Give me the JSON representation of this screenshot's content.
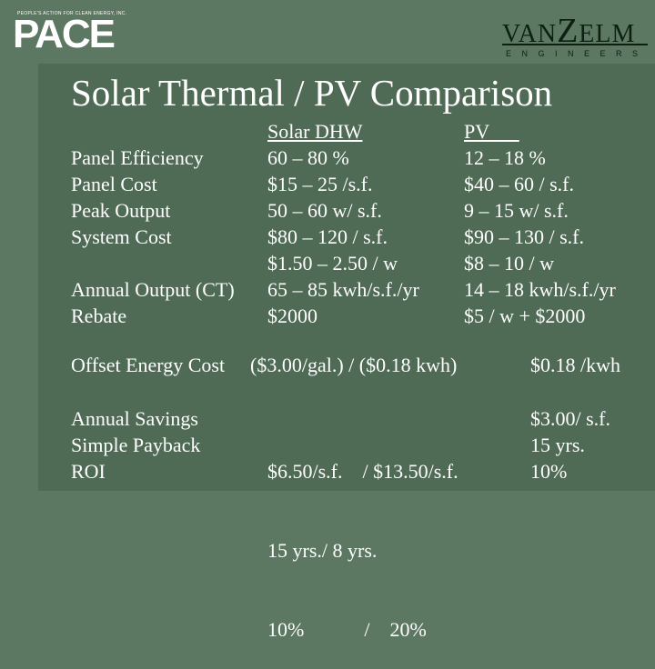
{
  "header": {
    "pace_tagline": "PEOPLE'S ACTION FOR CLEAN ENERGY, INC.",
    "pace_logo": "PACE",
    "vanzelm_logo_left": "VAN",
    "vanzelm_logo_z": "Z",
    "vanzelm_logo_right": "ELM",
    "vanzelm_sub": "ENGINEERS"
  },
  "title": "Solar Thermal / PV Comparison",
  "comparison": {
    "labels": [
      "",
      "Panel Efficiency",
      "Panel Cost",
      "Peak Output",
      "System Cost",
      "",
      "Annual Output (CT)",
      "Rebate"
    ],
    "solar_dhw": [
      "Solar DHW",
      "60 – 80 %",
      "$15 – 25 /s.f.",
      "50 – 60 w/ s.f.",
      "$80 – 120 / s.f.",
      "$1.50 – 2.50 / w",
      "65 – 85 kwh/s.f./yr",
      "$2000"
    ],
    "pv": [
      "PV      ",
      "12 – 18 %",
      "$40 – 60 / s.f.",
      "9 – 15 w/ s.f.",
      "$90 – 130 / s.f.",
      "$8 – 10 / w",
      "14 – 18 kwh/s.f./yr",
      "$5 / w + $2000"
    ]
  },
  "offset": {
    "label": "Offset Energy Cost",
    "solar_value": "($3.00/gal.) / ($0.18 kwh)",
    "pv_value": "$0.18 /kwh"
  },
  "savings": {
    "labels": [
      "Annual Savings",
      "Simple Payback",
      "ROI"
    ],
    "solar_values": [
      "$6.50/s.f.    / $13.50/s.f.",
      "15 yrs./ 8 yrs.",
      "10%            /    20%"
    ],
    "pv_values": [
      "$3.00/ s.f.",
      "15 yrs.",
      "10%"
    ]
  }
}
